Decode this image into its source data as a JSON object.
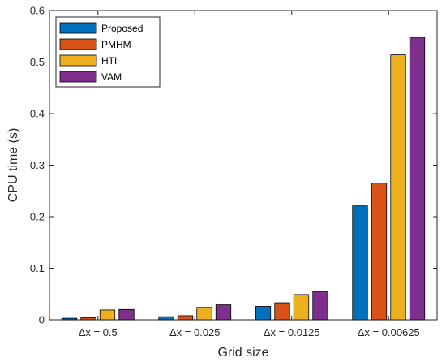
{
  "chart_data": {
    "type": "bar",
    "title": "",
    "xlabel": "Grid size",
    "ylabel": "CPU time (s)",
    "ylim": [
      0,
      0.6
    ],
    "yticks": [
      "0",
      "0.1",
      "0.2",
      "0.3",
      "0.4",
      "0.5",
      "0.6"
    ],
    "categories": [
      "Δx = 0.5",
      "Δx = 0.025",
      "Δx = 0.0125",
      "Δx = 0.00625"
    ],
    "series": [
      {
        "name": "Proposed",
        "color": "#0072BD",
        "values": [
          0.003,
          0.006,
          0.026,
          0.221
        ]
      },
      {
        "name": "PMHM",
        "color": "#D95319",
        "values": [
          0.004,
          0.008,
          0.033,
          0.265
        ]
      },
      {
        "name": "HTI",
        "color": "#EDB120",
        "values": [
          0.019,
          0.024,
          0.049,
          0.514
        ]
      },
      {
        "name": "VAM",
        "color": "#7E2F8E",
        "values": [
          0.02,
          0.029,
          0.055,
          0.548
        ]
      }
    ],
    "legend_position": "top-left",
    "grid": false
  }
}
